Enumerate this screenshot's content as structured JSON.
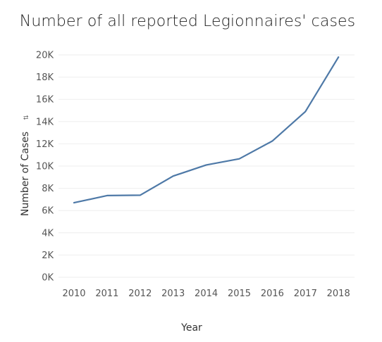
{
  "chart_data": {
    "type": "line",
    "title": "Number of all reported Legionnaires' cases",
    "xlabel": "Year",
    "ylabel": "Number of Cases",
    "x": [
      "2010",
      "2011",
      "2012",
      "2013",
      "2014",
      "2015",
      "2016",
      "2017",
      "2018"
    ],
    "series": [
      {
        "values": [
          6700,
          7350,
          7380,
          9100,
          10100,
          10650,
          12250,
          14900,
          19800
        ]
      }
    ],
    "ylim": [
      0,
      20000
    ],
    "yticks": [
      0,
      2000,
      4000,
      6000,
      8000,
      10000,
      12000,
      14000,
      16000,
      18000,
      20000
    ],
    "ytick_labels": [
      "0K",
      "2K",
      "4K",
      "6K",
      "8K",
      "10K",
      "12K",
      "14K",
      "16K",
      "18K",
      "20K"
    ],
    "grid": true,
    "colors": {
      "line": "#4e79a7",
      "grid": "#eeeeee"
    },
    "ylabel_icon": "sort-icon"
  }
}
